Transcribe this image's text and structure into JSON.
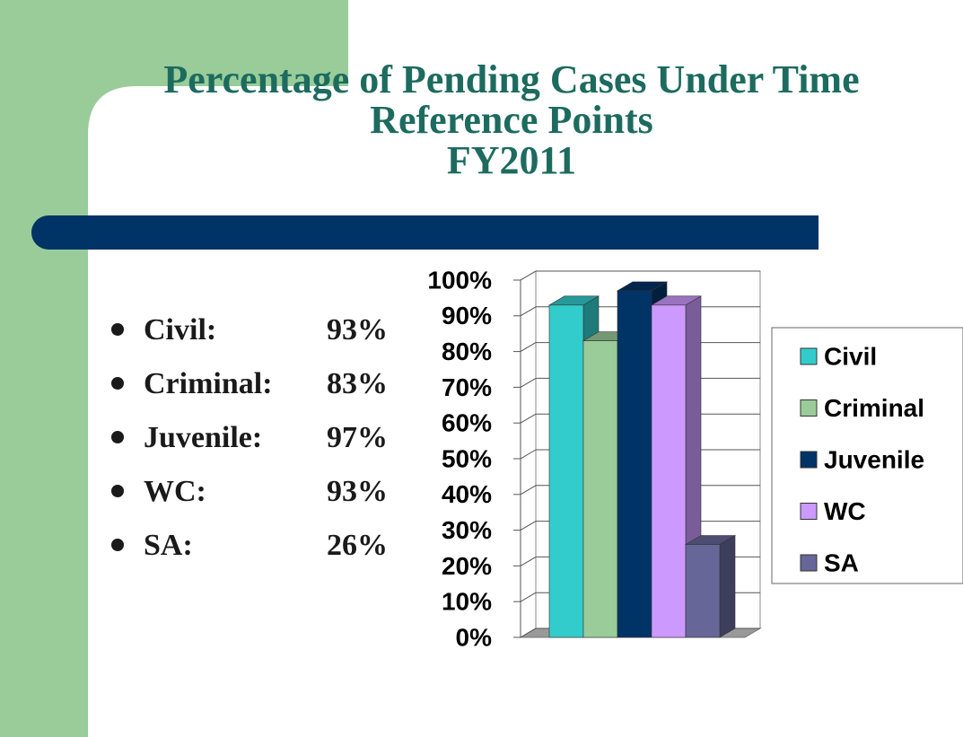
{
  "title_lines": [
    "Percentage of Pending Cases Under Time",
    "Reference Points",
    "FY2011"
  ],
  "bullets": [
    "Civil:",
    "Criminal:",
    "Juvenile:",
    "WC:",
    "SA:"
  ],
  "chart_data": {
    "type": "bar3d",
    "series": [
      {
        "name": "Civil",
        "color": "#33cccc",
        "values": [
          93
        ],
        "value_labels": [
          "93%"
        ]
      },
      {
        "name": "Criminal",
        "color": "#99cc99",
        "values": [
          83
        ],
        "value_labels": [
          "83%"
        ]
      },
      {
        "name": "Juvenile",
        "color": "#003366",
        "values": [
          97
        ],
        "value_labels": [
          "97%"
        ]
      },
      {
        "name": "WC",
        "color": "#cc99ff",
        "values": [
          93
        ],
        "value_labels": [
          "93%"
        ]
      },
      {
        "name": "SA",
        "color": "#666699",
        "values": [
          26
        ],
        "value_labels": [
          "26%"
        ]
      }
    ],
    "ylim": [
      0,
      100
    ],
    "yticks": [
      {
        "value": 0,
        "label": "0%"
      },
      {
        "value": 10,
        "label": "10%"
      },
      {
        "value": 20,
        "label": "20%"
      },
      {
        "value": 30,
        "label": "30%"
      },
      {
        "value": 40,
        "label": "40%"
      },
      {
        "value": 50,
        "label": "50%"
      },
      {
        "value": 60,
        "label": "60%"
      },
      {
        "value": 70,
        "label": "70%"
      },
      {
        "value": 80,
        "label": "80%"
      },
      {
        "value": 90,
        "label": "90%"
      },
      {
        "value": 100,
        "label": "100%"
      }
    ],
    "grid": true,
    "legend": "right"
  }
}
